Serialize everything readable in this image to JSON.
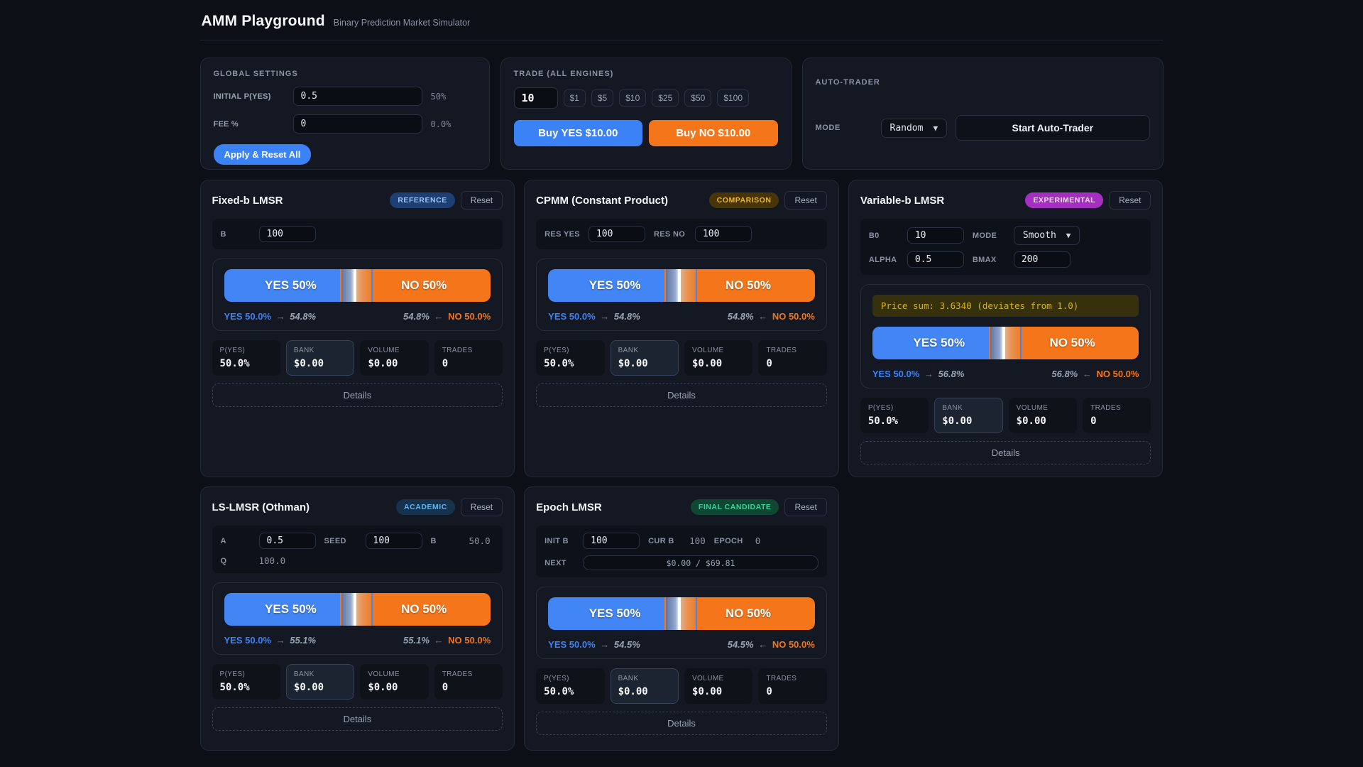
{
  "colors": {
    "accent_blue": "#3b82f6",
    "accent_orange": "#f5761a",
    "badge_reference": "#9cc3fa",
    "badge_comparison": "#f0b429",
    "badge_experimental": "#f7dafb",
    "badge_academic": "#62b4f0",
    "badge_final": "#37d399",
    "warning_text": "#d4b612"
  },
  "header": {
    "title": "AMM Playground",
    "subtitle": "Binary Prediction Market Simulator"
  },
  "global_settings": {
    "title": "GLOBAL SETTINGS",
    "initial_p_label": "INITIAL P(YES)",
    "initial_p_value": "0.5",
    "initial_p_hint": "50%",
    "fee_label": "FEE %",
    "fee_value": "0",
    "fee_hint": "0.0%",
    "apply_label": "Apply & Reset All"
  },
  "trade": {
    "title": "TRADE (ALL ENGINES)",
    "amount_value": "10",
    "quick_amounts": [
      "$1",
      "$5",
      "$10",
      "$25",
      "$50",
      "$100"
    ],
    "buy_yes_label": "Buy YES $10.00",
    "buy_no_label": "Buy NO $10.00"
  },
  "auto_trader": {
    "title": "AUTO-TRADER",
    "mode_label": "MODE",
    "mode_value": "Random",
    "start_label": "Start Auto-Trader"
  },
  "engines": {
    "fixed": {
      "title": "Fixed-b LMSR",
      "badge": "REFERENCE",
      "reset_label": "Reset",
      "b_label": "B",
      "b_value": "100",
      "bar_yes": "YES 50%",
      "bar_no": "NO 50%",
      "impact_yes_from": "YES 50.0%",
      "impact_arrow_to": "→",
      "impact_yes_to": "54.8%",
      "impact_no_to": "54.8%",
      "impact_arrow_from": "←",
      "impact_no_from": "NO 50.0%",
      "stat_pyes_label": "P(YES)",
      "stat_pyes": "50.0%",
      "stat_bank_label": "BANK",
      "stat_bank": "$0.00",
      "stat_volume_label": "VOLUME",
      "stat_volume": "$0.00",
      "stat_trades_label": "TRADES",
      "stat_trades": "0",
      "details_label": "Details"
    },
    "cpmm": {
      "title": "CPMM (Constant Product)",
      "badge": "COMPARISON",
      "reset_label": "Reset",
      "res_yes_label": "RES YES",
      "res_yes_value": "100",
      "res_no_label": "RES NO",
      "res_no_value": "100",
      "bar_yes": "YES 50%",
      "bar_no": "NO 50%",
      "impact_yes_from": "YES 50.0%",
      "impact_arrow_to": "→",
      "impact_yes_to": "54.8%",
      "impact_no_to": "54.8%",
      "impact_arrow_from": "←",
      "impact_no_from": "NO 50.0%",
      "stat_pyes_label": "P(YES)",
      "stat_pyes": "50.0%",
      "stat_bank_label": "BANK",
      "stat_bank": "$0.00",
      "stat_volume_label": "VOLUME",
      "stat_volume": "$0.00",
      "stat_trades_label": "TRADES",
      "stat_trades": "0",
      "details_label": "Details"
    },
    "variable": {
      "title": "Variable-b LMSR",
      "badge": "EXPERIMENTAL",
      "reset_label": "Reset",
      "b0_label": "B0",
      "b0_value": "10",
      "mode_label": "MODE",
      "mode_value": "Smooth",
      "alpha_label": "ALPHA",
      "alpha_value": "0.5",
      "bmax_label": "BMAX",
      "bmax_value": "200",
      "warning": "Price sum: 3.6340 (deviates from 1.0)",
      "bar_yes": "YES 50%",
      "bar_no": "NO 50%",
      "impact_yes_from": "YES 50.0%",
      "impact_arrow_to": "→",
      "impact_yes_to": "56.8%",
      "impact_no_to": "56.8%",
      "impact_arrow_from": "←",
      "impact_no_from": "NO 50.0%",
      "stat_pyes_label": "P(YES)",
      "stat_pyes": "50.0%",
      "stat_bank_label": "BANK",
      "stat_bank": "$0.00",
      "stat_volume_label": "VOLUME",
      "stat_volume": "$0.00",
      "stat_trades_label": "TRADES",
      "stat_trades": "0",
      "details_label": "Details"
    },
    "ls": {
      "title": "LS-LMSR (Othman)",
      "badge": "ACADEMIC",
      "reset_label": "Reset",
      "a_label": "A",
      "a_value": "0.5",
      "seed_label": "SEED",
      "seed_value": "100",
      "b_label": "B",
      "b_value": "50.0",
      "q_label": "Q",
      "q_value": "100.0",
      "bar_yes": "YES 50%",
      "bar_no": "NO 50%",
      "impact_yes_from": "YES 50.0%",
      "impact_arrow_to": "→",
      "impact_yes_to": "55.1%",
      "impact_no_to": "55.1%",
      "impact_arrow_from": "←",
      "impact_no_from": "NO 50.0%",
      "stat_pyes_label": "P(YES)",
      "stat_pyes": "50.0%",
      "stat_bank_label": "BANK",
      "stat_bank": "$0.00",
      "stat_volume_label": "VOLUME",
      "stat_volume": "$0.00",
      "stat_trades_label": "TRADES",
      "stat_trades": "0",
      "details_label": "Details"
    },
    "epoch": {
      "title": "Epoch LMSR",
      "badge": "FINAL CANDIDATE",
      "reset_label": "Reset",
      "initb_label": "INIT B",
      "initb_value": "100",
      "curb_label": "CUR B",
      "curb_value": "100",
      "epoch_label": "EPOCH",
      "epoch_value": "0",
      "next_label": "NEXT",
      "progress_text": "$0.00 / $69.81",
      "bar_yes": "YES 50%",
      "bar_no": "NO 50%",
      "impact_yes_from": "YES 50.0%",
      "impact_arrow_to": "→",
      "impact_yes_to": "54.5%",
      "impact_no_to": "54.5%",
      "impact_arrow_from": "←",
      "impact_no_from": "NO 50.0%",
      "stat_pyes_label": "P(YES)",
      "stat_pyes": "50.0%",
      "stat_bank_label": "BANK",
      "stat_bank": "$0.00",
      "stat_volume_label": "VOLUME",
      "stat_volume": "$0.00",
      "stat_trades_label": "TRADES",
      "stat_trades": "0",
      "details_label": "Details"
    }
  }
}
